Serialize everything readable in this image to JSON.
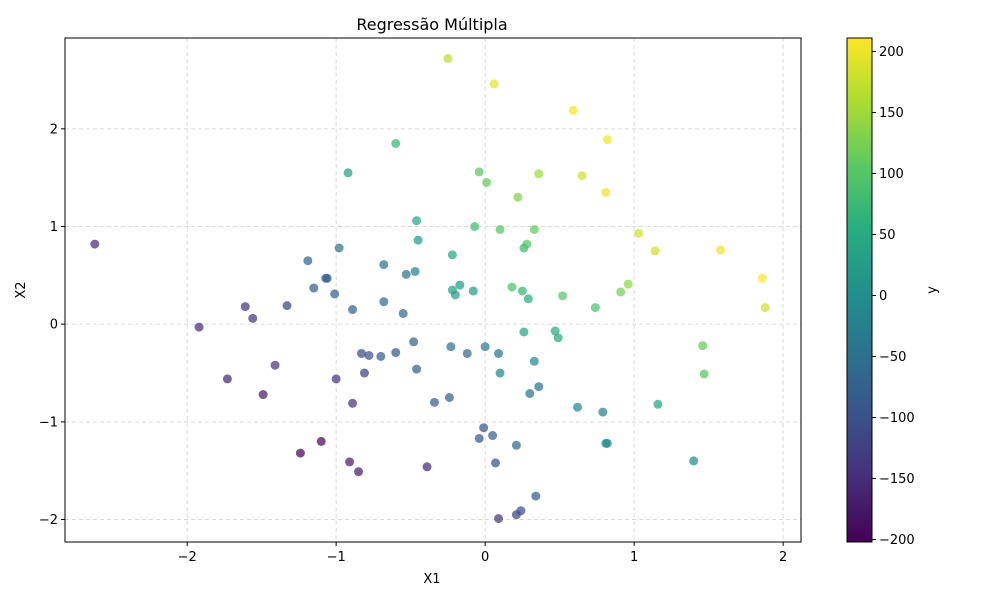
{
  "chart_data": {
    "type": "scatter",
    "title": "Regressão Múltipla",
    "xlabel": "X1",
    "ylabel": "X2",
    "xlim": [
      -2.82,
      2.12
    ],
    "ylim": [
      -2.23,
      2.93
    ],
    "xticks": [
      -2,
      -1,
      0,
      1,
      2
    ],
    "yticks": [
      -2,
      -1,
      0,
      1,
      2
    ],
    "grid": true,
    "colorbar": {
      "label": "y",
      "range": [
        -202,
        211
      ],
      "ticks": [
        -200,
        -150,
        -100,
        -50,
        0,
        50,
        100,
        150,
        200
      ],
      "colormap": "viridis"
    },
    "points": [
      {
        "x": -2.62,
        "y": 0.82,
        "c": -150
      },
      {
        "x": -1.92,
        "y": -0.03,
        "c": -155
      },
      {
        "x": -1.73,
        "y": -0.56,
        "c": -160
      },
      {
        "x": -1.61,
        "y": 0.18,
        "c": -135
      },
      {
        "x": -1.56,
        "y": 0.06,
        "c": -140
      },
      {
        "x": -1.49,
        "y": -0.72,
        "c": -170
      },
      {
        "x": -1.41,
        "y": -0.42,
        "c": -140
      },
      {
        "x": -1.33,
        "y": 0.19,
        "c": -120
      },
      {
        "x": -1.24,
        "y": -1.32,
        "c": -195
      },
      {
        "x": -1.19,
        "y": 0.65,
        "c": -70
      },
      {
        "x": -1.15,
        "y": 0.37,
        "c": -80
      },
      {
        "x": -1.1,
        "y": -1.2,
        "c": -190
      },
      {
        "x": -1.07,
        "y": 0.47,
        "c": -80
      },
      {
        "x": -1.06,
        "y": 0.47,
        "c": -80
      },
      {
        "x": -1.01,
        "y": 0.31,
        "c": -80
      },
      {
        "x": -1.0,
        "y": -0.56,
        "c": -140
      },
      {
        "x": -0.98,
        "y": 0.78,
        "c": -45
      },
      {
        "x": -0.92,
        "y": 1.55,
        "c": 30
      },
      {
        "x": -0.91,
        "y": -1.41,
        "c": -170
      },
      {
        "x": -0.89,
        "y": 0.15,
        "c": -75
      },
      {
        "x": -0.89,
        "y": -0.81,
        "c": -140
      },
      {
        "x": -0.85,
        "y": -1.51,
        "c": -170
      },
      {
        "x": -0.83,
        "y": -0.3,
        "c": -110
      },
      {
        "x": -0.81,
        "y": -0.5,
        "c": -130
      },
      {
        "x": -0.78,
        "y": -0.32,
        "c": -100
      },
      {
        "x": -0.7,
        "y": -0.33,
        "c": -80
      },
      {
        "x": -0.68,
        "y": 0.23,
        "c": -55
      },
      {
        "x": -0.68,
        "y": 0.61,
        "c": -40
      },
      {
        "x": -0.6,
        "y": 1.85,
        "c": 70
      },
      {
        "x": -0.6,
        "y": -0.29,
        "c": -90
      },
      {
        "x": -0.55,
        "y": 0.11,
        "c": -60
      },
      {
        "x": -0.53,
        "y": 0.51,
        "c": -40
      },
      {
        "x": -0.48,
        "y": -0.18,
        "c": -70
      },
      {
        "x": -0.47,
        "y": 0.54,
        "c": -20
      },
      {
        "x": -0.46,
        "y": 1.06,
        "c": 40
      },
      {
        "x": -0.46,
        "y": -0.46,
        "c": -80
      },
      {
        "x": -0.45,
        "y": 0.86,
        "c": 20
      },
      {
        "x": -0.39,
        "y": -1.46,
        "c": -150
      },
      {
        "x": -0.34,
        "y": -0.8,
        "c": -80
      },
      {
        "x": -0.25,
        "y": 2.72,
        "c": 170
      },
      {
        "x": -0.24,
        "y": -0.75,
        "c": -75
      },
      {
        "x": -0.23,
        "y": -0.23,
        "c": -50
      },
      {
        "x": -0.22,
        "y": 0.71,
        "c": 45
      },
      {
        "x": -0.22,
        "y": 0.35,
        "c": 30
      },
      {
        "x": -0.2,
        "y": 0.3,
        "c": 30
      },
      {
        "x": -0.17,
        "y": 0.4,
        "c": 20
      },
      {
        "x": -0.12,
        "y": -0.3,
        "c": -60
      },
      {
        "x": -0.08,
        "y": 0.34,
        "c": 20
      },
      {
        "x": -0.07,
        "y": 1.0,
        "c": 80
      },
      {
        "x": -0.04,
        "y": 1.56,
        "c": 100
      },
      {
        "x": -0.04,
        "y": -1.17,
        "c": -90
      },
      {
        "x": -0.01,
        "y": -1.06,
        "c": -90
      },
      {
        "x": 0.0,
        "y": -0.23,
        "c": -30
      },
      {
        "x": 0.01,
        "y": 1.45,
        "c": 110
      },
      {
        "x": 0.05,
        "y": -1.14,
        "c": -85
      },
      {
        "x": 0.06,
        "y": 2.46,
        "c": 195
      },
      {
        "x": 0.07,
        "y": -1.42,
        "c": -100
      },
      {
        "x": 0.09,
        "y": -0.3,
        "c": -40
      },
      {
        "x": 0.1,
        "y": 0.97,
        "c": 100
      },
      {
        "x": 0.1,
        "y": -0.5,
        "c": -10
      },
      {
        "x": 0.09,
        "y": -1.99,
        "c": -140
      },
      {
        "x": 0.18,
        "y": 0.38,
        "c": 90
      },
      {
        "x": 0.21,
        "y": -1.24,
        "c": -70
      },
      {
        "x": 0.21,
        "y": -1.95,
        "c": -120
      },
      {
        "x": 0.22,
        "y": 1.3,
        "c": 130
      },
      {
        "x": 0.24,
        "y": -1.91,
        "c": -110
      },
      {
        "x": 0.25,
        "y": 0.34,
        "c": 70
      },
      {
        "x": 0.26,
        "y": 0.78,
        "c": 75
      },
      {
        "x": 0.26,
        "y": -0.08,
        "c": 40
      },
      {
        "x": 0.28,
        "y": 0.82,
        "c": 100
      },
      {
        "x": 0.29,
        "y": 0.26,
        "c": 50
      },
      {
        "x": 0.3,
        "y": -0.71,
        "c": -40
      },
      {
        "x": 0.33,
        "y": -0.38,
        "c": -10
      },
      {
        "x": 0.33,
        "y": 0.97,
        "c": 110
      },
      {
        "x": 0.34,
        "y": -1.76,
        "c": -80
      },
      {
        "x": 0.36,
        "y": 1.54,
        "c": 150
      },
      {
        "x": 0.36,
        "y": -0.64,
        "c": -40
      },
      {
        "x": 0.47,
        "y": -0.07,
        "c": 50
      },
      {
        "x": 0.49,
        "y": -0.14,
        "c": 50
      },
      {
        "x": 0.52,
        "y": 0.29,
        "c": 100
      },
      {
        "x": 0.59,
        "y": 2.19,
        "c": 205
      },
      {
        "x": 0.62,
        "y": -0.85,
        "c": -10
      },
      {
        "x": 0.65,
        "y": 1.52,
        "c": 180
      },
      {
        "x": 0.74,
        "y": 0.17,
        "c": 90
      },
      {
        "x": 0.79,
        "y": -0.9,
        "c": -20
      },
      {
        "x": 0.81,
        "y": 1.35,
        "c": 200
      },
      {
        "x": 0.81,
        "y": -1.22,
        "c": 0
      },
      {
        "x": 0.82,
        "y": 1.89,
        "c": 205
      },
      {
        "x": 0.82,
        "y": -1.22,
        "c": 0
      },
      {
        "x": 0.91,
        "y": 0.33,
        "c": 120
      },
      {
        "x": 0.96,
        "y": 0.41,
        "c": 140
      },
      {
        "x": 1.03,
        "y": 0.93,
        "c": 180
      },
      {
        "x": 1.14,
        "y": 0.75,
        "c": 180
      },
      {
        "x": 1.16,
        "y": -0.82,
        "c": 40
      },
      {
        "x": 1.4,
        "y": -1.4,
        "c": 0
      },
      {
        "x": 1.46,
        "y": -0.22,
        "c": 110
      },
      {
        "x": 1.47,
        "y": -0.51,
        "c": 100
      },
      {
        "x": 1.58,
        "y": 0.76,
        "c": 200
      },
      {
        "x": 1.86,
        "y": 0.47,
        "c": 210
      },
      {
        "x": 1.88,
        "y": 0.17,
        "c": 180
      }
    ]
  }
}
